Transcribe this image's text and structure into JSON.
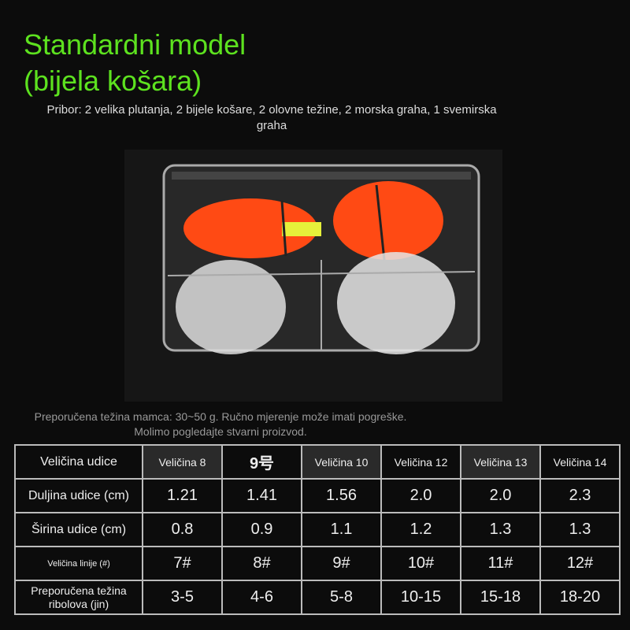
{
  "title": {
    "line1": "Standardni model",
    "line2": "(bijela košara)"
  },
  "accessories": "Pribor: 2 velika plutanja, 2 bijele košare, 2 olovne težine, 2 morska graha, 1 svemirska graha",
  "note": "Preporučena težina mamca: 30~50 g. Ručno mjerenje može imati pogreške. Molimo pogledajte stvarni proizvod.",
  "colors": {
    "title": "#5de21f",
    "float": "#ff4a14"
  },
  "table": {
    "header": [
      "Veličina udice",
      "Veličina 8",
      "9号",
      "Veličina 10",
      "Veličina 12",
      "Veličina 13",
      "Veličina 14"
    ],
    "rows": [
      [
        "Duljina udice (cm)",
        "1.21",
        "1.41",
        "1.56",
        "2.0",
        "2.0",
        "2.3"
      ],
      [
        "Širina udice (cm)",
        "0.8",
        "0.9",
        "1.1",
        "1.2",
        "1.3",
        "1.3"
      ],
      [
        "Veličina linije (#)",
        "7#",
        "8#",
        "9#",
        "10#",
        "11#",
        "12#"
      ],
      [
        "Preporučena težina ribolova (jin)",
        "3-5",
        "4-6",
        "5-8",
        "10-15",
        "15-18",
        "18-20"
      ]
    ]
  }
}
